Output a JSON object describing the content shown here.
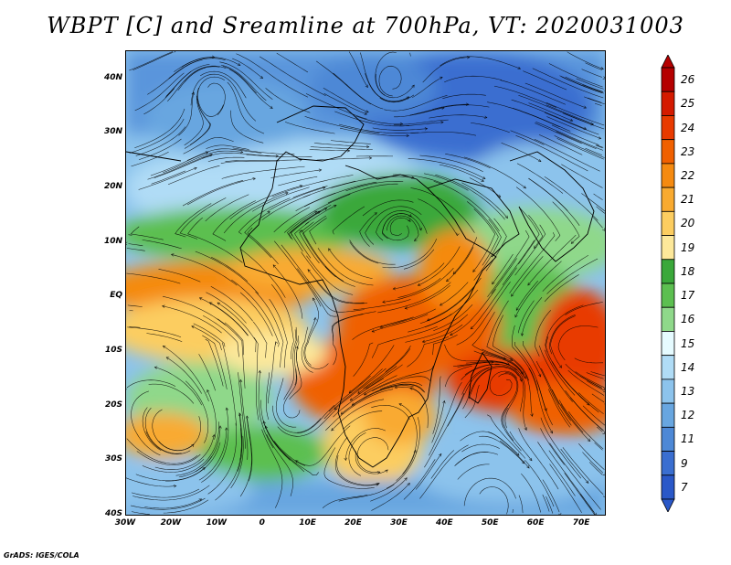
{
  "title": "WBPT [C] and Sreamline at 700hPa, VT: 2020031003",
  "credit": "GrADS: IGES/COLA",
  "map": {
    "lon_range": [
      -30,
      75
    ],
    "lat_range": [
      -40,
      45
    ],
    "lat_labels": [
      "40N",
      "30N",
      "20N",
      "10N",
      "EQ",
      "10S",
      "20S",
      "30S",
      "40S"
    ],
    "lat_values": [
      40,
      30,
      20,
      10,
      0,
      -10,
      -20,
      -30,
      -40
    ],
    "lon_labels": [
      "30W",
      "20W",
      "10W",
      "0",
      "10E",
      "20E",
      "30E",
      "40E",
      "50E",
      "60E",
      "70E"
    ],
    "lon_values": [
      -30,
      -20,
      -10,
      0,
      10,
      20,
      30,
      40,
      50,
      60,
      70
    ]
  },
  "colorbar": {
    "labels": [
      "26",
      "25",
      "24",
      "23",
      "22",
      "21",
      "20",
      "19",
      "18",
      "17",
      "16",
      "15",
      "14",
      "13",
      "12",
      "11",
      "9",
      "7"
    ],
    "colors": [
      "#b50000",
      "#d41a00",
      "#e83a00",
      "#f06000",
      "#f58a10",
      "#f9aa30",
      "#fccd60",
      "#fde89a",
      "#3aa83a",
      "#5cbf50",
      "#8fd88a",
      "#e6fbff",
      "#b0dcf6",
      "#8cc3ec",
      "#68a6e0",
      "#4d88d6",
      "#3a6ed0",
      "#2a58c8"
    ]
  }
}
